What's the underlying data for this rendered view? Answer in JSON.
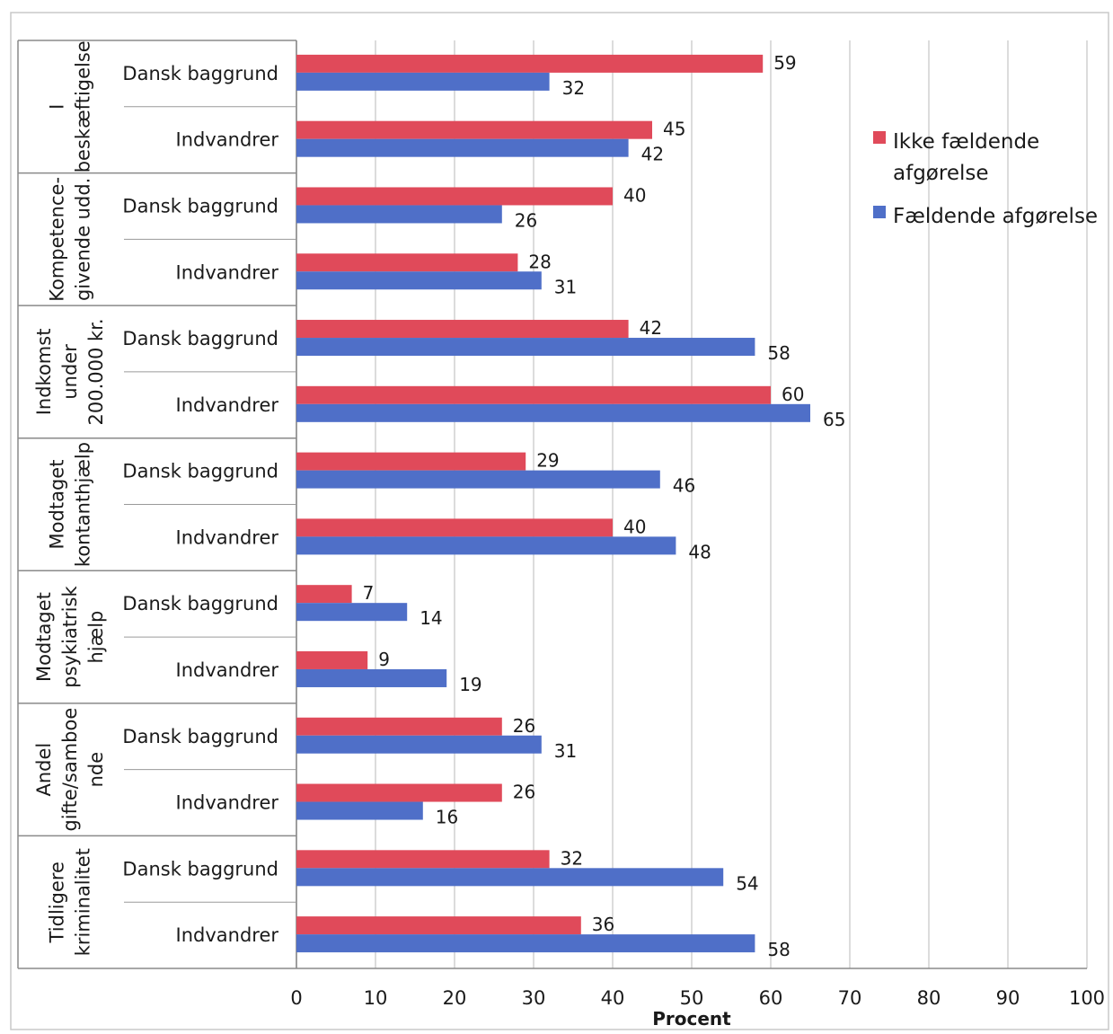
{
  "chart_data": {
    "type": "bar",
    "orientation": "horizontal",
    "xlabel": "Procent",
    "xlim": [
      0,
      100
    ],
    "xticks": [
      0,
      10,
      20,
      30,
      40,
      50,
      60,
      70,
      80,
      90,
      100
    ],
    "grid": true,
    "legend_position": "right",
    "groups": [
      {
        "label": "I beskæftigelse",
        "lines": [
          "I",
          "beskæftigelse"
        ],
        "categories": [
          "Dansk baggrund",
          "Indvandrer"
        ]
      },
      {
        "label": "Kompetence-givende udd.",
        "lines": [
          "Kompetence-",
          "givende udd."
        ],
        "categories": [
          "Dansk baggrund",
          "Indvandrer"
        ]
      },
      {
        "label": "Indkomst under 200.000 kr.",
        "lines": [
          "Indkomst",
          "under",
          "200.000 kr."
        ],
        "categories": [
          "Dansk baggrund",
          "Indvandrer"
        ]
      },
      {
        "label": "Modtaget kontanthjælp",
        "lines": [
          "Modtaget",
          "kontanthjælp"
        ],
        "categories": [
          "Dansk baggrund",
          "Indvandrer"
        ]
      },
      {
        "label": "Modtaget psykiatrisk hjælp",
        "lines": [
          "Modtaget",
          "psykiatrisk",
          "hjælp"
        ],
        "categories": [
          "Dansk baggrund",
          "Indvandrer"
        ]
      },
      {
        "label": "Andel gifte/samboende",
        "lines": [
          "Andel",
          "gifte/samboe",
          "nde"
        ],
        "categories": [
          "Dansk baggrund",
          "Indvandrer"
        ]
      },
      {
        "label": "Tidligere kriminalitet",
        "lines": [
          "Tidligere",
          "kriminalitet"
        ],
        "categories": [
          "Dansk baggrund",
          "Indvandrer"
        ]
      }
    ],
    "series": [
      {
        "name": "Ikke fældende afgørelse",
        "legend_lines": [
          "Ikke fældende",
          "afgørelse"
        ],
        "color": "#e04a5a",
        "values": [
          59,
          45,
          40,
          28,
          42,
          60,
          29,
          40,
          7,
          9,
          26,
          26,
          32,
          36
        ]
      },
      {
        "name": "Fældende afgørelse",
        "legend_lines": [
          "Fældende afgørelse"
        ],
        "color": "#4f6fc8",
        "values": [
          32,
          42,
          26,
          31,
          58,
          65,
          46,
          48,
          14,
          19,
          31,
          16,
          54,
          58
        ]
      }
    ]
  }
}
